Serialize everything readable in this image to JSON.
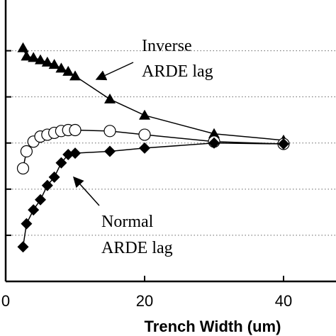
{
  "chart_data": {
    "type": "line",
    "x_label": "Trench Width (um)",
    "xlim": [
      0,
      47.55
    ],
    "xticks": [
      0,
      20,
      40
    ],
    "ylim": [
      0,
      6.1
    ],
    "ygrid": [
      1,
      2,
      3,
      4,
      5
    ],
    "grid": true,
    "annotations": [
      "Inverse",
      "ARDE lag",
      "Normal",
      "ARDE lag"
    ],
    "series": [
      {
        "marker": "triangle",
        "color": "#000000",
        "x": [
          2.5,
          3,
          4,
          5,
          6,
          7,
          8,
          9,
          10,
          15,
          20,
          30,
          40
        ],
        "values": [
          5.06,
          4.88,
          4.85,
          4.8,
          4.75,
          4.7,
          4.62,
          4.55,
          4.45,
          3.95,
          3.6,
          3.2,
          3.06
        ]
      },
      {
        "marker": "circle",
        "color": "#000000",
        "x": [
          2.5,
          3,
          4,
          5,
          6,
          7,
          8,
          9,
          10,
          15,
          20,
          30,
          40
        ],
        "values": [
          2.45,
          2.82,
          3.03,
          3.14,
          3.18,
          3.22,
          3.26,
          3.28,
          3.28,
          3.26,
          3.18,
          3.03,
          2.98
        ]
      },
      {
        "marker": "diamond",
        "color": "#000000",
        "x": [
          2.5,
          3,
          4,
          5,
          6,
          7,
          8,
          9,
          10,
          15,
          20,
          30,
          40
        ],
        "values": [
          0.75,
          1.25,
          1.55,
          1.77,
          2.08,
          2.26,
          2.57,
          2.75,
          2.78,
          2.82,
          2.89,
          3.0,
          2.98
        ]
      }
    ]
  }
}
